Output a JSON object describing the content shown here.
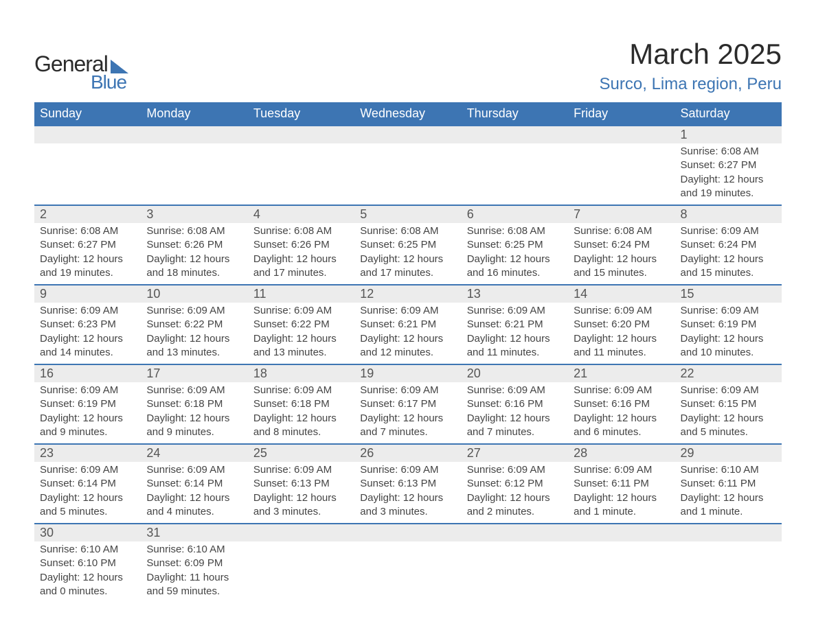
{
  "logo": {
    "general": "General",
    "blue": "Blue"
  },
  "title": "March 2025",
  "location": "Surco, Lima region, Peru",
  "colors": {
    "header_bg": "#3d75b3",
    "header_text": "#ffffff",
    "daynum_bg": "#ececec",
    "row_border": "#3d75b3",
    "text": "#444444",
    "accent": "#3d75b3"
  },
  "day_headers": [
    "Sunday",
    "Monday",
    "Tuesday",
    "Wednesday",
    "Thursday",
    "Friday",
    "Saturday"
  ],
  "weeks": [
    [
      null,
      null,
      null,
      null,
      null,
      null,
      {
        "n": "1",
        "sr": "Sunrise: 6:08 AM",
        "ss": "Sunset: 6:27 PM",
        "dl": "Daylight: 12 hours and 19 minutes."
      }
    ],
    [
      {
        "n": "2",
        "sr": "Sunrise: 6:08 AM",
        "ss": "Sunset: 6:27 PM",
        "dl": "Daylight: 12 hours and 19 minutes."
      },
      {
        "n": "3",
        "sr": "Sunrise: 6:08 AM",
        "ss": "Sunset: 6:26 PM",
        "dl": "Daylight: 12 hours and 18 minutes."
      },
      {
        "n": "4",
        "sr": "Sunrise: 6:08 AM",
        "ss": "Sunset: 6:26 PM",
        "dl": "Daylight: 12 hours and 17 minutes."
      },
      {
        "n": "5",
        "sr": "Sunrise: 6:08 AM",
        "ss": "Sunset: 6:25 PM",
        "dl": "Daylight: 12 hours and 17 minutes."
      },
      {
        "n": "6",
        "sr": "Sunrise: 6:08 AM",
        "ss": "Sunset: 6:25 PM",
        "dl": "Daylight: 12 hours and 16 minutes."
      },
      {
        "n": "7",
        "sr": "Sunrise: 6:08 AM",
        "ss": "Sunset: 6:24 PM",
        "dl": "Daylight: 12 hours and 15 minutes."
      },
      {
        "n": "8",
        "sr": "Sunrise: 6:09 AM",
        "ss": "Sunset: 6:24 PM",
        "dl": "Daylight: 12 hours and 15 minutes."
      }
    ],
    [
      {
        "n": "9",
        "sr": "Sunrise: 6:09 AM",
        "ss": "Sunset: 6:23 PM",
        "dl": "Daylight: 12 hours and 14 minutes."
      },
      {
        "n": "10",
        "sr": "Sunrise: 6:09 AM",
        "ss": "Sunset: 6:22 PM",
        "dl": "Daylight: 12 hours and 13 minutes."
      },
      {
        "n": "11",
        "sr": "Sunrise: 6:09 AM",
        "ss": "Sunset: 6:22 PM",
        "dl": "Daylight: 12 hours and 13 minutes."
      },
      {
        "n": "12",
        "sr": "Sunrise: 6:09 AM",
        "ss": "Sunset: 6:21 PM",
        "dl": "Daylight: 12 hours and 12 minutes."
      },
      {
        "n": "13",
        "sr": "Sunrise: 6:09 AM",
        "ss": "Sunset: 6:21 PM",
        "dl": "Daylight: 12 hours and 11 minutes."
      },
      {
        "n": "14",
        "sr": "Sunrise: 6:09 AM",
        "ss": "Sunset: 6:20 PM",
        "dl": "Daylight: 12 hours and 11 minutes."
      },
      {
        "n": "15",
        "sr": "Sunrise: 6:09 AM",
        "ss": "Sunset: 6:19 PM",
        "dl": "Daylight: 12 hours and 10 minutes."
      }
    ],
    [
      {
        "n": "16",
        "sr": "Sunrise: 6:09 AM",
        "ss": "Sunset: 6:19 PM",
        "dl": "Daylight: 12 hours and 9 minutes."
      },
      {
        "n": "17",
        "sr": "Sunrise: 6:09 AM",
        "ss": "Sunset: 6:18 PM",
        "dl": "Daylight: 12 hours and 9 minutes."
      },
      {
        "n": "18",
        "sr": "Sunrise: 6:09 AM",
        "ss": "Sunset: 6:18 PM",
        "dl": "Daylight: 12 hours and 8 minutes."
      },
      {
        "n": "19",
        "sr": "Sunrise: 6:09 AM",
        "ss": "Sunset: 6:17 PM",
        "dl": "Daylight: 12 hours and 7 minutes."
      },
      {
        "n": "20",
        "sr": "Sunrise: 6:09 AM",
        "ss": "Sunset: 6:16 PM",
        "dl": "Daylight: 12 hours and 7 minutes."
      },
      {
        "n": "21",
        "sr": "Sunrise: 6:09 AM",
        "ss": "Sunset: 6:16 PM",
        "dl": "Daylight: 12 hours and 6 minutes."
      },
      {
        "n": "22",
        "sr": "Sunrise: 6:09 AM",
        "ss": "Sunset: 6:15 PM",
        "dl": "Daylight: 12 hours and 5 minutes."
      }
    ],
    [
      {
        "n": "23",
        "sr": "Sunrise: 6:09 AM",
        "ss": "Sunset: 6:14 PM",
        "dl": "Daylight: 12 hours and 5 minutes."
      },
      {
        "n": "24",
        "sr": "Sunrise: 6:09 AM",
        "ss": "Sunset: 6:14 PM",
        "dl": "Daylight: 12 hours and 4 minutes."
      },
      {
        "n": "25",
        "sr": "Sunrise: 6:09 AM",
        "ss": "Sunset: 6:13 PM",
        "dl": "Daylight: 12 hours and 3 minutes."
      },
      {
        "n": "26",
        "sr": "Sunrise: 6:09 AM",
        "ss": "Sunset: 6:13 PM",
        "dl": "Daylight: 12 hours and 3 minutes."
      },
      {
        "n": "27",
        "sr": "Sunrise: 6:09 AM",
        "ss": "Sunset: 6:12 PM",
        "dl": "Daylight: 12 hours and 2 minutes."
      },
      {
        "n": "28",
        "sr": "Sunrise: 6:09 AM",
        "ss": "Sunset: 6:11 PM",
        "dl": "Daylight: 12 hours and 1 minute."
      },
      {
        "n": "29",
        "sr": "Sunrise: 6:10 AM",
        "ss": "Sunset: 6:11 PM",
        "dl": "Daylight: 12 hours and 1 minute."
      }
    ],
    [
      {
        "n": "30",
        "sr": "Sunrise: 6:10 AM",
        "ss": "Sunset: 6:10 PM",
        "dl": "Daylight: 12 hours and 0 minutes."
      },
      {
        "n": "31",
        "sr": "Sunrise: 6:10 AM",
        "ss": "Sunset: 6:09 PM",
        "dl": "Daylight: 11 hours and 59 minutes."
      },
      null,
      null,
      null,
      null,
      null
    ]
  ]
}
